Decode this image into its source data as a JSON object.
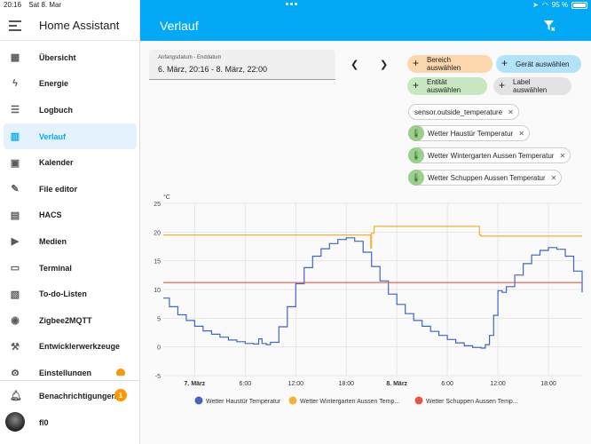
{
  "status": {
    "time": "20:16",
    "date": "Sat 8. Mar",
    "battery": "95 %"
  },
  "sidebar": {
    "title": "Home Assistant",
    "items": [
      {
        "label": "Übersicht",
        "icon": "dashboard-icon"
      },
      {
        "label": "Energie",
        "icon": "lightning-icon"
      },
      {
        "label": "Logbuch",
        "icon": "list-icon"
      },
      {
        "label": "Verlauf",
        "icon": "chart-icon",
        "active": true
      },
      {
        "label": "Kalender",
        "icon": "calendar-icon"
      },
      {
        "label": "File editor",
        "icon": "wrench-icon"
      },
      {
        "label": "HACS",
        "icon": "hacs-icon"
      },
      {
        "label": "Medien",
        "icon": "media-icon"
      },
      {
        "label": "Terminal",
        "icon": "terminal-icon"
      },
      {
        "label": "To-do-Listen",
        "icon": "clipboard-icon"
      },
      {
        "label": "Zigbee2MQTT",
        "icon": "zigbee-icon"
      },
      {
        "label": "Entwicklerwerkzeuge",
        "icon": "hammer-icon"
      },
      {
        "label": "Einstellungen",
        "icon": "gear-icon"
      }
    ],
    "notifications": {
      "label": "Benachrichtigungen",
      "count": "1"
    },
    "user": {
      "label": "fl0"
    }
  },
  "topbar": {
    "title": "Verlauf"
  },
  "date_picker": {
    "label": "Anfangsdatum - Enddatum",
    "value": "6. März, 20:16 - 8. März, 22:00"
  },
  "target_buttons": [
    {
      "label": "Bereich auswählen",
      "color": "#fcd7ad"
    },
    {
      "label": "Gerät auswählen",
      "color": "#b3e3fb"
    },
    {
      "label": "Entität auswählen",
      "color": "#c9e7c1"
    },
    {
      "label": "Label auswählen",
      "color": "#e3e3e3"
    }
  ],
  "selected": [
    {
      "label": "sensor.outside_temperature"
    },
    {
      "label": "Wetter Haustür Temperatur"
    },
    {
      "label": "Wetter Wintergarten Aussen Temperatur"
    },
    {
      "label": "Wetter Schuppen Aussen Temperatur"
    }
  ],
  "chart_data": {
    "type": "line",
    "ylabel": "°C",
    "ylim": [
      -5,
      25
    ],
    "y_ticks": [
      "25",
      "20",
      "15",
      "10",
      "5",
      "0",
      "-5"
    ],
    "x_ticks": [
      "7. März",
      "6:00",
      "12:00",
      "18:00",
      "8. März",
      "6:00",
      "12:00",
      "18:00"
    ],
    "x_range_hours": [
      20.27,
      70
    ],
    "grid": true,
    "legend_position": "bottom",
    "series": [
      {
        "name": "Wetter Haustür Temperatur",
        "color": "#3f65c8",
        "points": [
          [
            20.27,
            8.5
          ],
          [
            21,
            7
          ],
          [
            22,
            5.6
          ],
          [
            23,
            4.6
          ],
          [
            24,
            3.6
          ],
          [
            25,
            2.8
          ],
          [
            26,
            2.2
          ],
          [
            27,
            1.7
          ],
          [
            28,
            1.2
          ],
          [
            29,
            0.9
          ],
          [
            30,
            0.6
          ],
          [
            31,
            0.5
          ],
          [
            31.5,
            0.5
          ],
          [
            31.6,
            1.4
          ],
          [
            32,
            0.6
          ],
          [
            32.5,
            0.4
          ],
          [
            33,
            0.8
          ],
          [
            34,
            3.5
          ],
          [
            35,
            7
          ],
          [
            36,
            11
          ],
          [
            37,
            13.8
          ],
          [
            38,
            15.8
          ],
          [
            39,
            17.1
          ],
          [
            40,
            18
          ],
          [
            41,
            18.7
          ],
          [
            42,
            19
          ],
          [
            43,
            18.4
          ],
          [
            44,
            16.5
          ],
          [
            45,
            14
          ],
          [
            46,
            11.5
          ],
          [
            47,
            9.2
          ],
          [
            48,
            7.4
          ],
          [
            49,
            5.8
          ],
          [
            50,
            4.6
          ],
          [
            51,
            3.6
          ],
          [
            52,
            2.7
          ],
          [
            53,
            2
          ],
          [
            54,
            1.3
          ],
          [
            55,
            0.7
          ],
          [
            56,
            0.2
          ],
          [
            57,
            -0.1
          ],
          [
            58,
            -0.2
          ],
          [
            58.5,
            0.4
          ],
          [
            59,
            2
          ],
          [
            59.5,
            5.5
          ],
          [
            60,
            9.8
          ],
          [
            60.5,
            9.5
          ],
          [
            61,
            10.5
          ],
          [
            62,
            12.5
          ],
          [
            63,
            14.5
          ],
          [
            64,
            16
          ],
          [
            65,
            16.8
          ],
          [
            66,
            17.3
          ],
          [
            67,
            17
          ],
          [
            68,
            15.8
          ],
          [
            69,
            13.2
          ],
          [
            70,
            9.5
          ]
        ]
      },
      {
        "name": "Wetter Wintergarten Aussen Temperatur",
        "color": "#f2b234",
        "points": [
          [
            20.27,
            19.5
          ],
          [
            44.9,
            19.5
          ],
          [
            44.9,
            17.2
          ],
          [
            45,
            19.8
          ],
          [
            45.3,
            21
          ],
          [
            57.5,
            21
          ],
          [
            57.8,
            19.5
          ],
          [
            58,
            19.3
          ],
          [
            70,
            19.3
          ]
        ]
      },
      {
        "name": "Wetter Schuppen Aussen Temperatur",
        "color": "#e8563f",
        "points": [
          [
            20.27,
            11.2
          ],
          [
            70,
            11.2
          ]
        ]
      }
    ]
  }
}
